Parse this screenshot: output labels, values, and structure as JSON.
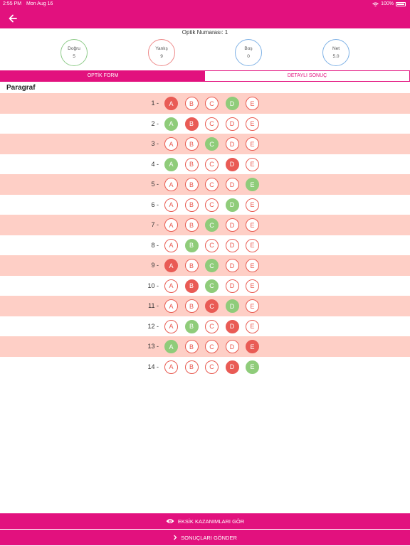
{
  "status": {
    "time": "2:55 PM",
    "date": "Mon Aug 16",
    "battery": "100%"
  },
  "header": {
    "optik_label": "Optik Numarası: 1"
  },
  "stats": {
    "dogru": {
      "label": "Doğru",
      "value": "5"
    },
    "yanlis": {
      "label": "Yanlış",
      "value": "9"
    },
    "bos": {
      "label": "Boş",
      "value": "0"
    },
    "net": {
      "label": "Net",
      "value": "5.0"
    }
  },
  "tabs": [
    {
      "label": "OPTİK FORM",
      "active": true
    },
    {
      "label": "DETAYLI SONUÇ",
      "active": false
    }
  ],
  "section": {
    "title": "Paragraf"
  },
  "options": [
    "A",
    "B",
    "C",
    "D",
    "E"
  ],
  "questions": [
    {
      "num": "1 -",
      "correct": "D",
      "wrong": "A"
    },
    {
      "num": "2 -",
      "correct": "A",
      "wrong": "B"
    },
    {
      "num": "3 -",
      "correct": "C",
      "wrong": null
    },
    {
      "num": "4 -",
      "correct": "A",
      "wrong": "D"
    },
    {
      "num": "5 -",
      "correct": "E",
      "wrong": null
    },
    {
      "num": "6 -",
      "correct": "D",
      "wrong": null
    },
    {
      "num": "7 -",
      "correct": "C",
      "wrong": null
    },
    {
      "num": "8 -",
      "correct": "B",
      "wrong": null
    },
    {
      "num": "9 -",
      "correct": "C",
      "wrong": "A"
    },
    {
      "num": "10 -",
      "correct": "C",
      "wrong": "B"
    },
    {
      "num": "11 -",
      "correct": "D",
      "wrong": "C"
    },
    {
      "num": "12 -",
      "correct": "B",
      "wrong": "D"
    },
    {
      "num": "13 -",
      "correct": "A",
      "wrong": "E"
    },
    {
      "num": "14 -",
      "correct": "E",
      "wrong": "D"
    }
  ],
  "buttons": {
    "eksik": "EKSİK KAZANIMLARI GÖR",
    "gonder": "SONUÇLARI GÖNDER"
  },
  "colors": {
    "accent": "#e2117e",
    "correct": "#8fcc7a",
    "wrong": "#e95b55",
    "row_alt": "#fecfc6"
  }
}
